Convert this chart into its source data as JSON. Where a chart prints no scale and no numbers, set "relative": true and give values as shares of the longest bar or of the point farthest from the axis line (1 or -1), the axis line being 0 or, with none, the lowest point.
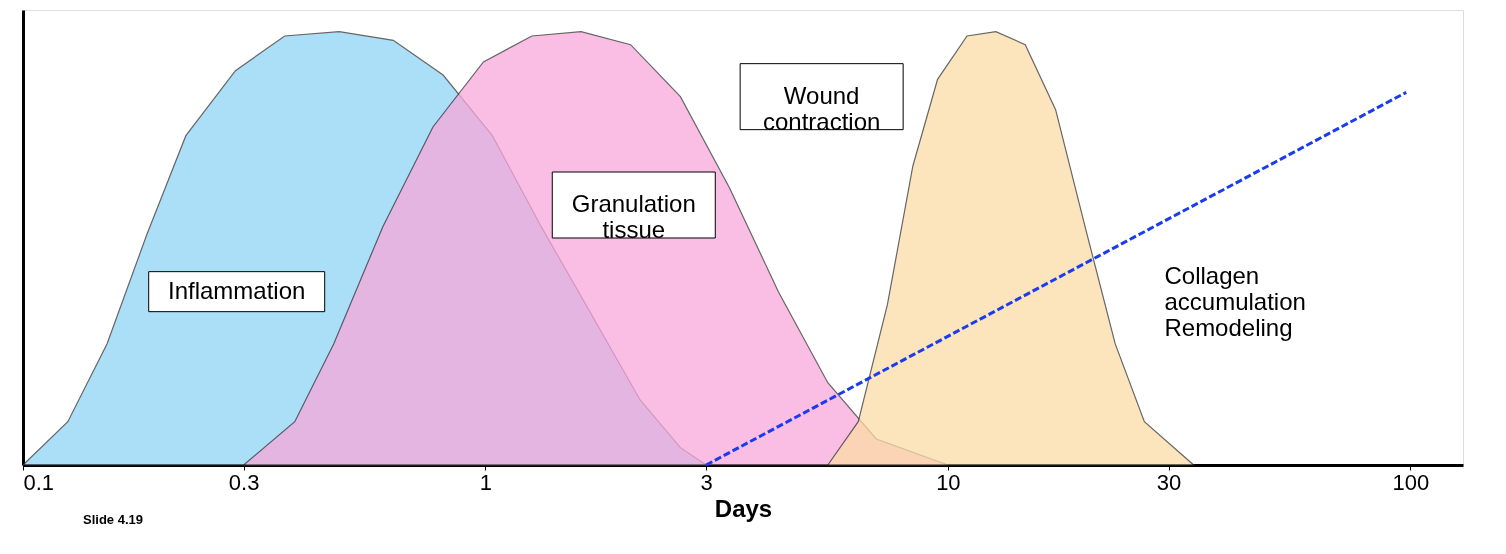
{
  "chart_data": {
    "type": "area",
    "xlabel": "Days",
    "relative": true,
    "log": "x",
    "xlim": [
      0.1,
      130
    ],
    "xticks": [
      0.1,
      0.3,
      1,
      3,
      10,
      30,
      100
    ],
    "series": [
      {
        "name": "Inflammation",
        "color": "#8fd3f5",
        "x": [
          0.1,
          0.125,
          0.152,
          0.185,
          0.225,
          0.288,
          0.368,
          0.483,
          0.632,
          0.81,
          1.035,
          1.32,
          1.69,
          2.16,
          2.64,
          3
        ],
        "values": [
          0,
          0.1,
          0.28,
          0.53,
          0.76,
          0.91,
          0.99,
          1.0,
          0.98,
          0.9,
          0.76,
          0.55,
          0.35,
          0.15,
          0.04,
          0
        ]
      },
      {
        "name": "Granulation tissue",
        "color": "#f9a8dc",
        "x": [
          0.3,
          0.387,
          0.47,
          0.6,
          0.77,
          0.99,
          1.26,
          1.61,
          2.06,
          2.64,
          3.37,
          4.3,
          5.5,
          7.0,
          10
        ],
        "values": [
          0,
          0.1,
          0.28,
          0.55,
          0.78,
          0.93,
          0.99,
          1.0,
          0.97,
          0.85,
          0.64,
          0.4,
          0.19,
          0.06,
          0
        ]
      },
      {
        "name": "Wound contraction",
        "color": "#fbdca6",
        "x": [
          5.5,
          6.4,
          7.4,
          8.4,
          9.5,
          11,
          12.7,
          14.7,
          17.1,
          19.8,
          23,
          26.6,
          34
        ],
        "values": [
          0,
          0.1,
          0.37,
          0.69,
          0.89,
          0.99,
          1.0,
          0.97,
          0.82,
          0.55,
          0.28,
          0.1,
          0
        ]
      },
      {
        "name": "Collagen accumulation Remodeling",
        "type": "line",
        "line_style": "dashed",
        "color": "#1a3cf0",
        "x": [
          3,
          98
        ],
        "values": [
          0,
          0.86
        ]
      }
    ],
    "annotations": [
      "Slide 4.19"
    ]
  }
}
